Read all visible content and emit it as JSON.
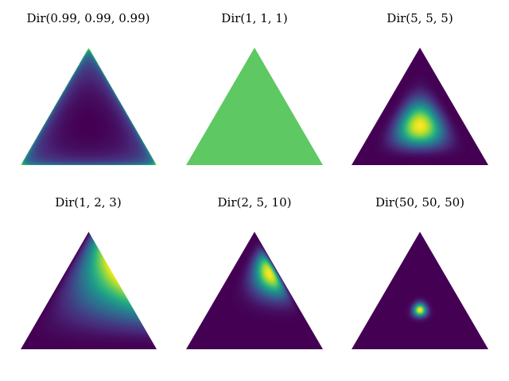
{
  "chart_data": [
    {
      "type": "heatmap",
      "title": "Dir(0.99, 0.99, 0.99)",
      "alpha": [
        0.99,
        0.99,
        0.99
      ],
      "colormap": "viridis"
    },
    {
      "type": "heatmap",
      "title": "Dir(1, 1, 1)",
      "alpha": [
        1,
        1,
        1
      ],
      "colormap": "viridis"
    },
    {
      "type": "heatmap",
      "title": "Dir(5, 5, 5)",
      "alpha": [
        5,
        5,
        5
      ],
      "colormap": "viridis"
    },
    {
      "type": "heatmap",
      "title": "Dir(1, 2, 3)",
      "alpha": [
        1,
        2,
        3
      ],
      "colormap": "viridis"
    },
    {
      "type": "heatmap",
      "title": "Dir(2, 5, 10)",
      "alpha": [
        2,
        5,
        10
      ],
      "colormap": "viridis"
    },
    {
      "type": "heatmap",
      "title": "Dir(50, 50, 50)",
      "alpha": [
        50,
        50,
        50
      ],
      "colormap": "viridis"
    }
  ],
  "colors": {
    "viridis_stops": [
      "#440154",
      "#482878",
      "#3e4989",
      "#31688e",
      "#26828e",
      "#1f9e89",
      "#35b779",
      "#6ece58",
      "#b5de2b",
      "#fde725"
    ],
    "uniform_fill": "#5ec962",
    "background": "#ffffff"
  }
}
